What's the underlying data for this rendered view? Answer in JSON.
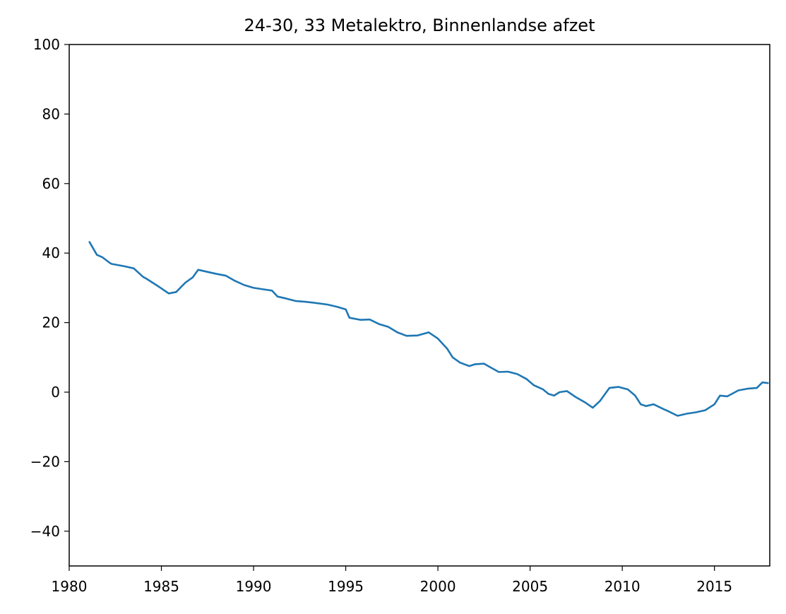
{
  "chart_data": {
    "type": "line",
    "title": "24-30, 33 Metalektro, Binnenlandse afzet",
    "xlabel": "",
    "ylabel": "",
    "xlim": [
      1980,
      2018
    ],
    "ylim": [
      -50,
      100
    ],
    "x_ticks": [
      "1980",
      "1985",
      "1990",
      "1995",
      "2000",
      "2005",
      "2010",
      "2015"
    ],
    "y_ticks": [
      "−40",
      "−20",
      "0",
      "20",
      "40",
      "60",
      "80",
      "100"
    ],
    "x_tick_values": [
      1980,
      1985,
      1990,
      1995,
      2000,
      2005,
      2010,
      2015
    ],
    "y_tick_values": [
      -40,
      -20,
      0,
      20,
      40,
      60,
      80,
      100
    ],
    "grid": false,
    "line_color": "#1f77b4",
    "series": [
      {
        "x": [
          1981.1,
          1981.5,
          1981.8,
          1982.2,
          1982.3,
          1983.0,
          1983.5,
          1984.0,
          1984.2,
          1984.9,
          1985.4,
          1985.8,
          1986.3,
          1986.7,
          1987.0,
          1987.5,
          1988.0,
          1988.5,
          1989.0,
          1989.5,
          1990.0,
          1990.5,
          1991.0,
          1991.3,
          1991.8,
          1992.3,
          1992.8,
          1993.3,
          1994.0,
          1994.5,
          1995.0,
          1995.2,
          1995.8,
          1996.3,
          1996.8,
          1997.3,
          1997.8,
          1998.3,
          1998.9,
          1999.5,
          2000.0,
          2000.5,
          2000.8,
          2001.2,
          2001.7,
          2002.0,
          2002.5,
          2002.9,
          2003.3,
          2003.8,
          2004.3,
          2004.8,
          2005.2,
          2005.7,
          2006.0,
          2006.3,
          2006.6,
          2007.0,
          2007.5,
          2008.0,
          2008.4,
          2008.8,
          2009.3,
          2009.8,
          2010.3,
          2010.7,
          2011.0,
          2011.3,
          2011.7,
          2012.2,
          2012.5,
          2013.0,
          2013.5,
          2014.0,
          2014.5,
          2015.0,
          2015.3,
          2015.7,
          2016.3,
          2016.8,
          2017.3,
          2017.6,
          2017.9
        ],
        "values": [
          43.2,
          39.5,
          38.8,
          37.2,
          36.9,
          36.2,
          35.6,
          33.2,
          32.6,
          30.2,
          28.4,
          28.8,
          31.5,
          33.0,
          35.2,
          34.6,
          34.0,
          33.5,
          32.0,
          30.8,
          30.0,
          29.6,
          29.2,
          27.5,
          26.9,
          26.2,
          26.0,
          25.7,
          25.2,
          24.6,
          23.8,
          21.4,
          20.8,
          20.9,
          19.6,
          18.8,
          17.2,
          16.2,
          16.3,
          17.2,
          15.4,
          12.5,
          10.0,
          8.5,
          7.5,
          8.0,
          8.2,
          7.0,
          5.8,
          5.9,
          5.2,
          3.8,
          2.0,
          0.8,
          -0.5,
          -1.0,
          0.0,
          0.3,
          -1.5,
          -3.0,
          -4.5,
          -2.5,
          1.2,
          1.5,
          0.8,
          -1.0,
          -3.5,
          -4.0,
          -3.5,
          -4.8,
          -5.5,
          -6.8,
          -6.2,
          -5.8,
          -5.2,
          -3.5,
          -1.0,
          -1.2,
          0.5,
          1.0,
          1.2,
          2.8,
          2.6
        ]
      }
    ]
  }
}
